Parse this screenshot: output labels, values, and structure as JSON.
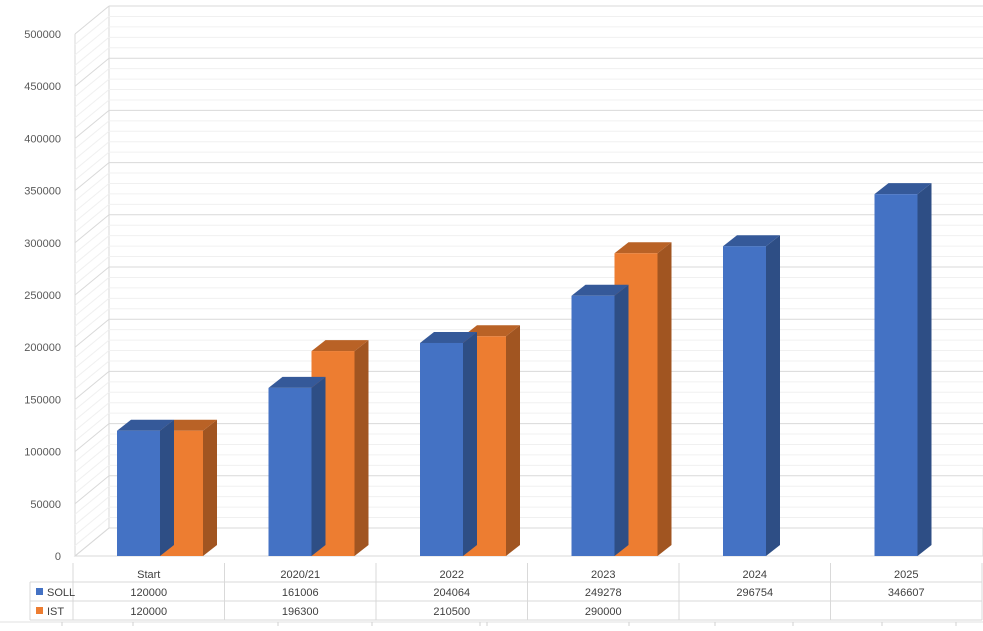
{
  "chart_data": {
    "type": "bar",
    "categories": [
      "Start",
      "2020/21",
      "2022",
      "2023",
      "2024",
      "2025"
    ],
    "series": [
      {
        "name": "SOLL",
        "color": "#4472C4",
        "values": [
          120000,
          161006,
          204064,
          249278,
          296754,
          346607
        ]
      },
      {
        "name": "IST",
        "color": "#ED7D31",
        "values": [
          120000,
          196300,
          210500,
          290000,
          null,
          null
        ]
      }
    ],
    "table_values": [
      [
        "120000",
        "161006",
        "204064",
        "249278",
        "296754",
        "346607"
      ],
      [
        "120000",
        "196300",
        "210500",
        "290000",
        "",
        ""
      ]
    ],
    "y_ticks": [
      "0",
      "50000",
      "100000",
      "150000",
      "200000",
      "250000",
      "300000",
      "350000",
      "400000",
      "450000",
      "500000"
    ],
    "ylim": [
      0,
      500000
    ],
    "grid": true,
    "style": "3d-clustered-column",
    "legend": "data-table"
  }
}
